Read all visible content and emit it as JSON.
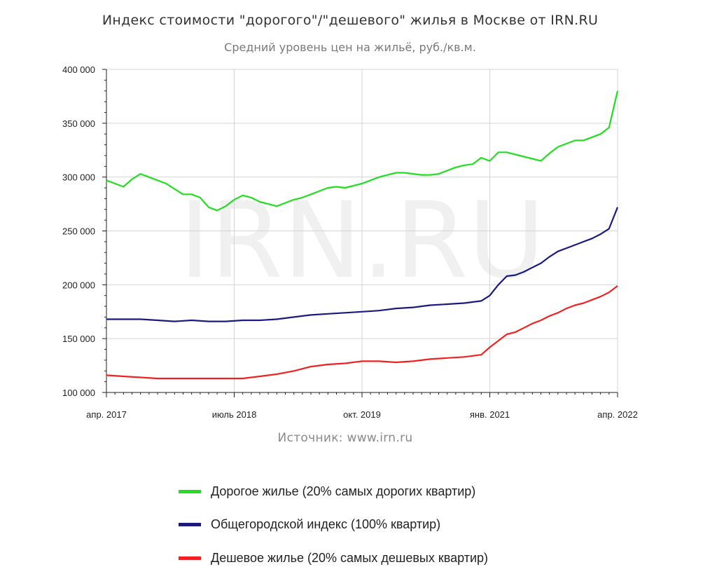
{
  "chart_data": {
    "type": "line",
    "title": "Индекс стоимости \"дорогого\"/\"дешевого\" жилья в Москве от IRN.RU",
    "subtitle": "Средний уровень цен на жильё, руб./кв.м.",
    "watermark": "IRN.RU",
    "source": "Источник: www.irn.ru",
    "xlabel": "",
    "ylabel": "",
    "x_range": [
      "2017-04",
      "2022-04"
    ],
    "ylim": [
      100000,
      400000
    ],
    "y_ticks": [
      100000,
      150000,
      200000,
      250000,
      300000,
      350000,
      400000
    ],
    "y_tick_labels": [
      "100 000",
      "150 000",
      "200 000",
      "250 000",
      "300 000",
      "350 000",
      "400 000"
    ],
    "x_ticks": [
      {
        "date": "2017-04",
        "label": "апр. 2017"
      },
      {
        "date": "2018-07",
        "label": "июль 2018"
      },
      {
        "date": "2019-10",
        "label": "окт. 2019"
      },
      {
        "date": "2021-01",
        "label": "янв. 2021"
      },
      {
        "date": "2022-04",
        "label": "апр. 2022"
      }
    ],
    "grid": true,
    "legend_position": "bottom",
    "series": [
      {
        "name": "Дорогое жилье (20% самых дорогих квартир)",
        "color": "#22dd22",
        "points": [
          [
            "2017-04",
            297000
          ],
          [
            "2017-05",
            294000
          ],
          [
            "2017-06",
            291000
          ],
          [
            "2017-07",
            298000
          ],
          [
            "2017-08",
            303000
          ],
          [
            "2017-09",
            300000
          ],
          [
            "2017-10",
            297000
          ],
          [
            "2017-11",
            294000
          ],
          [
            "2017-12",
            289000
          ],
          [
            "2018-01",
            284000
          ],
          [
            "2018-02",
            284000
          ],
          [
            "2018-03",
            281000
          ],
          [
            "2018-04",
            272000
          ],
          [
            "2018-05",
            269000
          ],
          [
            "2018-06",
            273000
          ],
          [
            "2018-07",
            279000
          ],
          [
            "2018-08",
            283000
          ],
          [
            "2018-09",
            281000
          ],
          [
            "2018-10",
            277000
          ],
          [
            "2018-11",
            275000
          ],
          [
            "2018-12",
            273000
          ],
          [
            "2019-01",
            276000
          ],
          [
            "2019-02",
            279000
          ],
          [
            "2019-03",
            281000
          ],
          [
            "2019-04",
            284000
          ],
          [
            "2019-05",
            287000
          ],
          [
            "2019-06",
            290000
          ],
          [
            "2019-07",
            291000
          ],
          [
            "2019-08",
            290000
          ],
          [
            "2019-09",
            292000
          ],
          [
            "2019-10",
            294000
          ],
          [
            "2019-11",
            297000
          ],
          [
            "2019-12",
            300000
          ],
          [
            "2020-01",
            302000
          ],
          [
            "2020-02",
            304000
          ],
          [
            "2020-03",
            304000
          ],
          [
            "2020-04",
            303000
          ],
          [
            "2020-05",
            302000
          ],
          [
            "2020-06",
            302000
          ],
          [
            "2020-07",
            303000
          ],
          [
            "2020-08",
            306000
          ],
          [
            "2020-09",
            309000
          ],
          [
            "2020-10",
            311000
          ],
          [
            "2020-11",
            312000
          ],
          [
            "2020-12",
            318000
          ],
          [
            "2021-01",
            315000
          ],
          [
            "2021-02",
            323000
          ],
          [
            "2021-03",
            323000
          ],
          [
            "2021-04",
            321000
          ],
          [
            "2021-05",
            319000
          ],
          [
            "2021-06",
            317000
          ],
          [
            "2021-07",
            315000
          ],
          [
            "2021-08",
            322000
          ],
          [
            "2021-09",
            328000
          ],
          [
            "2021-10",
            331000
          ],
          [
            "2021-11",
            334000
          ],
          [
            "2021-12",
            334000
          ],
          [
            "2022-01",
            337000
          ],
          [
            "2022-02",
            340000
          ],
          [
            "2022-03",
            346000
          ],
          [
            "2022-04",
            380000
          ]
        ]
      },
      {
        "name": "Общегородской индекс (100% квартир)",
        "color": "#1a1a80",
        "points": [
          [
            "2017-04",
            168000
          ],
          [
            "2017-06",
            168000
          ],
          [
            "2017-08",
            168000
          ],
          [
            "2017-10",
            167000
          ],
          [
            "2017-12",
            166000
          ],
          [
            "2018-02",
            167000
          ],
          [
            "2018-04",
            166000
          ],
          [
            "2018-06",
            166000
          ],
          [
            "2018-08",
            167000
          ],
          [
            "2018-10",
            167000
          ],
          [
            "2018-12",
            168000
          ],
          [
            "2019-02",
            170000
          ],
          [
            "2019-04",
            172000
          ],
          [
            "2019-06",
            173000
          ],
          [
            "2019-08",
            174000
          ],
          [
            "2019-10",
            175000
          ],
          [
            "2019-12",
            176000
          ],
          [
            "2020-02",
            178000
          ],
          [
            "2020-04",
            179000
          ],
          [
            "2020-06",
            181000
          ],
          [
            "2020-08",
            182000
          ],
          [
            "2020-10",
            183000
          ],
          [
            "2020-12",
            185000
          ],
          [
            "2021-01",
            190000
          ],
          [
            "2021-02",
            200000
          ],
          [
            "2021-03",
            208000
          ],
          [
            "2021-04",
            209000
          ],
          [
            "2021-05",
            212000
          ],
          [
            "2021-06",
            216000
          ],
          [
            "2021-07",
            220000
          ],
          [
            "2021-08",
            226000
          ],
          [
            "2021-09",
            231000
          ],
          [
            "2021-10",
            234000
          ],
          [
            "2021-11",
            237000
          ],
          [
            "2021-12",
            240000
          ],
          [
            "2022-01",
            243000
          ],
          [
            "2022-02",
            247000
          ],
          [
            "2022-03",
            252000
          ],
          [
            "2022-04",
            272000
          ]
        ]
      },
      {
        "name": "Дешевое жилье (20% самых дешевых квартир)",
        "color": "#ee2222",
        "points": [
          [
            "2017-04",
            116000
          ],
          [
            "2017-06",
            115000
          ],
          [
            "2017-08",
            114000
          ],
          [
            "2017-10",
            113000
          ],
          [
            "2017-12",
            113000
          ],
          [
            "2018-02",
            113000
          ],
          [
            "2018-04",
            113000
          ],
          [
            "2018-06",
            113000
          ],
          [
            "2018-08",
            113000
          ],
          [
            "2018-10",
            115000
          ],
          [
            "2018-12",
            117000
          ],
          [
            "2019-02",
            120000
          ],
          [
            "2019-04",
            124000
          ],
          [
            "2019-06",
            126000
          ],
          [
            "2019-08",
            127000
          ],
          [
            "2019-10",
            129000
          ],
          [
            "2019-12",
            129000
          ],
          [
            "2020-02",
            128000
          ],
          [
            "2020-04",
            129000
          ],
          [
            "2020-06",
            131000
          ],
          [
            "2020-08",
            132000
          ],
          [
            "2020-10",
            133000
          ],
          [
            "2020-12",
            135000
          ],
          [
            "2021-01",
            142000
          ],
          [
            "2021-02",
            148000
          ],
          [
            "2021-03",
            154000
          ],
          [
            "2021-04",
            156000
          ],
          [
            "2021-05",
            160000
          ],
          [
            "2021-06",
            164000
          ],
          [
            "2021-07",
            167000
          ],
          [
            "2021-08",
            171000
          ],
          [
            "2021-09",
            174000
          ],
          [
            "2021-10",
            178000
          ],
          [
            "2021-11",
            181000
          ],
          [
            "2021-12",
            183000
          ],
          [
            "2022-01",
            186000
          ],
          [
            "2022-02",
            189000
          ],
          [
            "2022-03",
            193000
          ],
          [
            "2022-04",
            199000
          ]
        ]
      }
    ]
  }
}
